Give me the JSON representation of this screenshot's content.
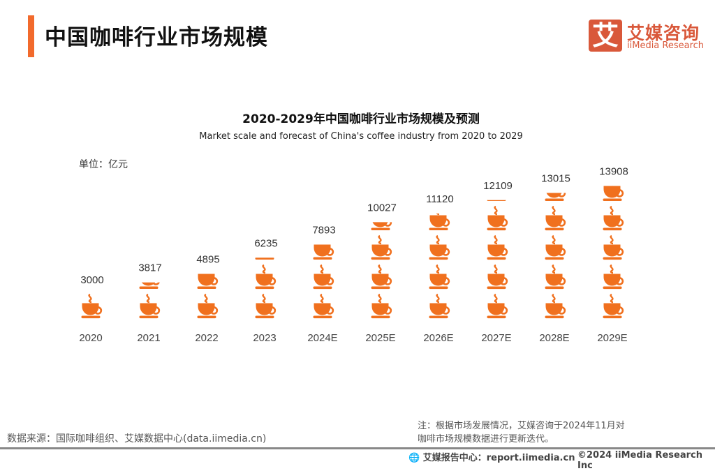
{
  "header": {
    "title": "中国咖啡行业市场规模"
  },
  "logo": {
    "mark": "艾",
    "cn": "艾媒咨询",
    "en": "iiMedia Research"
  },
  "chart_data": {
    "type": "pictogram",
    "title": "2020-2029年中国咖啡行业市场规模及预测",
    "subtitle": "Market scale and forecast of China's coffee industry from 2020 to 2029",
    "unit": "单位：亿元",
    "categories": [
      "2020",
      "2021",
      "2022",
      "2023",
      "2024E",
      "2025E",
      "2026E",
      "2027E",
      "2028E",
      "2029E"
    ],
    "values": [
      3000,
      3817,
      4895,
      6235,
      7893,
      10027,
      11120,
      12109,
      13015,
      13908
    ],
    "icon": "coffee-cup-icon",
    "units_per_icon": 3000,
    "color": "#f0701e"
  },
  "footer": {
    "source": "数据来源：国际咖啡组织、艾媒数据中心(data.iimedia.cn)",
    "note_line1": "注：根据市场发展情况，艾媒咨询于2024年11月对",
    "note_line2": "咖啡市场规模数据进行更新迭代。",
    "report": "艾媒报告中心：report.iimedia.cn",
    "copyright": "©2024  iiMedia Research  Inc"
  }
}
